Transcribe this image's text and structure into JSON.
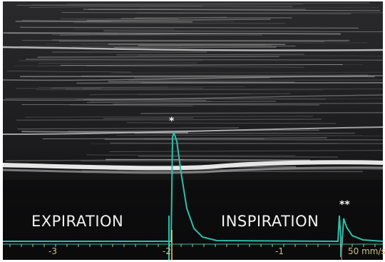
{
  "image": {
    "labels": {
      "expiration": "EXPIRATION",
      "inspiration": "INSPIRATION",
      "marker_single": "*",
      "marker_double": "**"
    },
    "time_axis": {
      "tick_labels": [
        "-3",
        "-2",
        "-1"
      ],
      "sweep_speed": "50 mm/s"
    },
    "colors": {
      "background": "#0b0b0c",
      "echo_bright": "#e6e6e6",
      "ecg_trace": "#2fbfa8",
      "axis_text": "#c9c38a"
    }
  }
}
